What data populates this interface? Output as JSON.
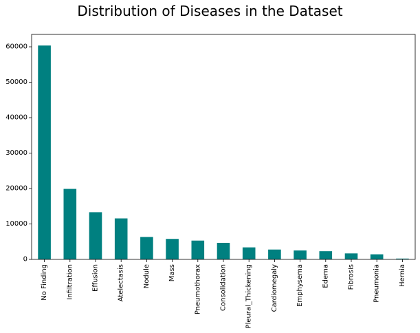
{
  "chart_data": {
    "type": "bar",
    "title": "Distribution of Diseases in the Dataset",
    "xlabel": "",
    "ylabel": "",
    "categories": [
      "No Finding",
      "Infiltration",
      "Effusion",
      "Atelectasis",
      "Nodule",
      "Mass",
      "Pneumothorax",
      "Consolidation",
      "Pleural_Thickening",
      "Cardiomegaly",
      "Emphysema",
      "Edema",
      "Fibrosis",
      "Pneumonia",
      "Hernia"
    ],
    "values": [
      60361,
      19894,
      13317,
      11559,
      6331,
      5782,
      5302,
      4667,
      3385,
      2776,
      2516,
      2303,
      1686,
      1431,
      227
    ],
    "ylim": [
      0,
      63500
    ],
    "yticks": [
      0,
      10000,
      20000,
      30000,
      40000,
      50000,
      60000
    ],
    "ytick_labels": [
      "0",
      "10000",
      "20000",
      "30000",
      "40000",
      "50000",
      "60000"
    ],
    "bar_color": "#008080",
    "grid": false,
    "legend": "none"
  }
}
